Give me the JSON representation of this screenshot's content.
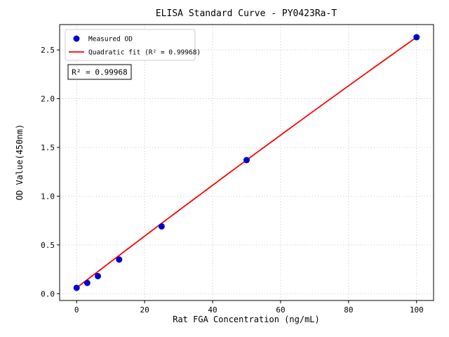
{
  "chart_data": {
    "type": "scatter",
    "title": "ELISA Standard Curve - PY0423Ra-T",
    "xlabel": "Rat FGA Concentration (ng/mL)",
    "ylabel": "OD Value(450nm)",
    "xlim": [
      -5,
      105
    ],
    "ylim": [
      -0.07,
      2.76
    ],
    "xticks": [
      0,
      20,
      40,
      60,
      80,
      100
    ],
    "xtick_labels": [
      "0",
      "20",
      "40",
      "60",
      "80",
      "100"
    ],
    "yticks": [
      0.0,
      0.5,
      1.0,
      1.5,
      2.0,
      2.5
    ],
    "ytick_labels": [
      "0.0",
      "0.5",
      "1.0",
      "1.5",
      "2.0",
      "2.5"
    ],
    "grid": true,
    "series": [
      {
        "name": "Measured OD",
        "type": "scatter",
        "color": "#0000cd",
        "x": [
          0,
          3.125,
          6.25,
          12.5,
          25,
          50,
          100
        ],
        "y": [
          0.06,
          0.11,
          0.18,
          0.35,
          0.69,
          1.37,
          2.63
        ]
      },
      {
        "name": "Quadratic fit (R² = 0.99968)",
        "type": "line",
        "color": "#ff0000",
        "fit_coeffs": [
          0.06,
          0.0267,
          -1e-05
        ],
        "x_range": [
          0,
          100
        ]
      }
    ],
    "legend": {
      "position": "upper left",
      "entries": [
        "Measured OD",
        "Quadratic fit (R² = 0.99968)"
      ]
    },
    "annotation": "R² = 0.99968"
  }
}
